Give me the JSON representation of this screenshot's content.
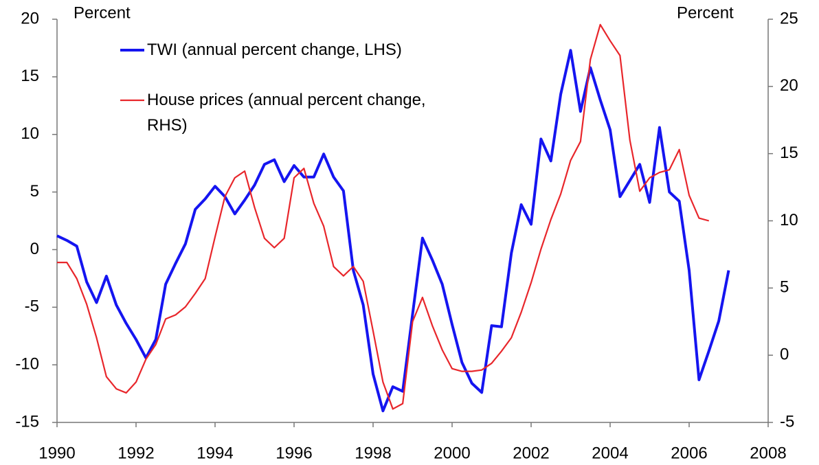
{
  "chart_data": {
    "type": "line",
    "y_label": "Percent",
    "y2_label": "Percent",
    "x": [
      1990,
      1990.25,
      1990.5,
      1990.75,
      1991,
      1991.25,
      1991.5,
      1991.75,
      1992,
      1992.25,
      1992.5,
      1992.75,
      1993,
      1993.25,
      1993.5,
      1993.75,
      1994,
      1994.25,
      1994.5,
      1994.75,
      1995,
      1995.25,
      1995.5,
      1995.75,
      1996,
      1996.25,
      1996.5,
      1996.75,
      1997,
      1997.25,
      1997.5,
      1997.75,
      1998,
      1998.25,
      1998.5,
      1998.75,
      1999,
      1999.25,
      1999.5,
      1999.75,
      2000,
      2000.25,
      2000.5,
      2000.75,
      2001,
      2001.25,
      2001.5,
      2001.75,
      2002,
      2002.25,
      2002.5,
      2002.75,
      2003,
      2003.25,
      2003.5,
      2003.75,
      2004,
      2004.25,
      2004.5,
      2004.75,
      2005,
      2005.25,
      2005.5,
      2005.75,
      2006,
      2006.25,
      2006.5,
      2006.75,
      2007
    ],
    "series": [
      {
        "name": "TWI (annual percent change, LHS)",
        "color": "#1515f0",
        "axis": "y",
        "values": [
          1.2,
          0.8,
          0.3,
          -2.8,
          -4.6,
          -2.3,
          -4.8,
          -6.4,
          -7.8,
          -9.4,
          -7.8,
          -3.0,
          -1.2,
          0.5,
          3.5,
          4.4,
          5.5,
          4.6,
          3.1,
          4.3,
          5.6,
          7.4,
          7.8,
          5.9,
          7.3,
          6.3,
          6.3,
          8.3,
          6.3,
          5.1,
          -1.8,
          -4.8,
          -10.8,
          -14.0,
          -11.9,
          -12.3,
          -5.6,
          1.0,
          -0.9,
          -3.0,
          -6.5,
          -9.8,
          -11.6,
          -12.4,
          -6.6,
          -6.7,
          -0.3,
          3.9,
          2.2,
          9.6,
          7.7,
          13.5,
          17.3,
          12.0,
          15.8,
          13.0,
          10.4,
          4.6,
          6.0,
          7.4,
          4.1,
          10.6,
          5.0,
          4.2,
          -1.8,
          -11.3,
          -8.8,
          -6.2,
          -1.8
        ]
      },
      {
        "name": "House prices (annual percent change, RHS)",
        "color": "#e8262b",
        "axis": "y2",
        "values": [
          6.9,
          6.9,
          5.7,
          3.8,
          1.3,
          -1.6,
          -2.5,
          -2.8,
          -2.0,
          -0.3,
          0.8,
          2.7,
          3.0,
          3.6,
          4.6,
          5.7,
          8.8,
          11.8,
          13.2,
          13.7,
          11.0,
          8.7,
          8.0,
          8.7,
          13.2,
          13.9,
          11.3,
          9.6,
          6.6,
          5.9,
          6.6,
          5.5,
          1.8,
          -2.0,
          -4.0,
          -3.6,
          2.5,
          4.3,
          2.2,
          0.4,
          -1.0,
          -1.2,
          -1.2,
          -1.1,
          -0.6,
          0.3,
          1.3,
          3.2,
          5.4,
          7.9,
          10.1,
          12.0,
          14.5,
          15.9,
          22.0,
          24.6,
          23.4,
          22.3,
          16.0,
          12.2,
          13.2,
          13.6,
          13.8,
          15.3,
          11.9,
          10.2,
          10.0,
          null,
          null
        ]
      }
    ],
    "xlim": [
      1990,
      2008
    ],
    "xticks": [
      1990,
      1992,
      1994,
      1996,
      1998,
      2000,
      2002,
      2004,
      2006,
      2008
    ],
    "ylim": [
      -15,
      20
    ],
    "yticks": [
      -15,
      -10,
      -5,
      0,
      5,
      10,
      15,
      20
    ],
    "y2lim": [
      -5,
      25
    ],
    "y2ticks": [
      -5,
      0,
      5,
      10,
      15,
      20,
      25
    ],
    "grid": false
  }
}
